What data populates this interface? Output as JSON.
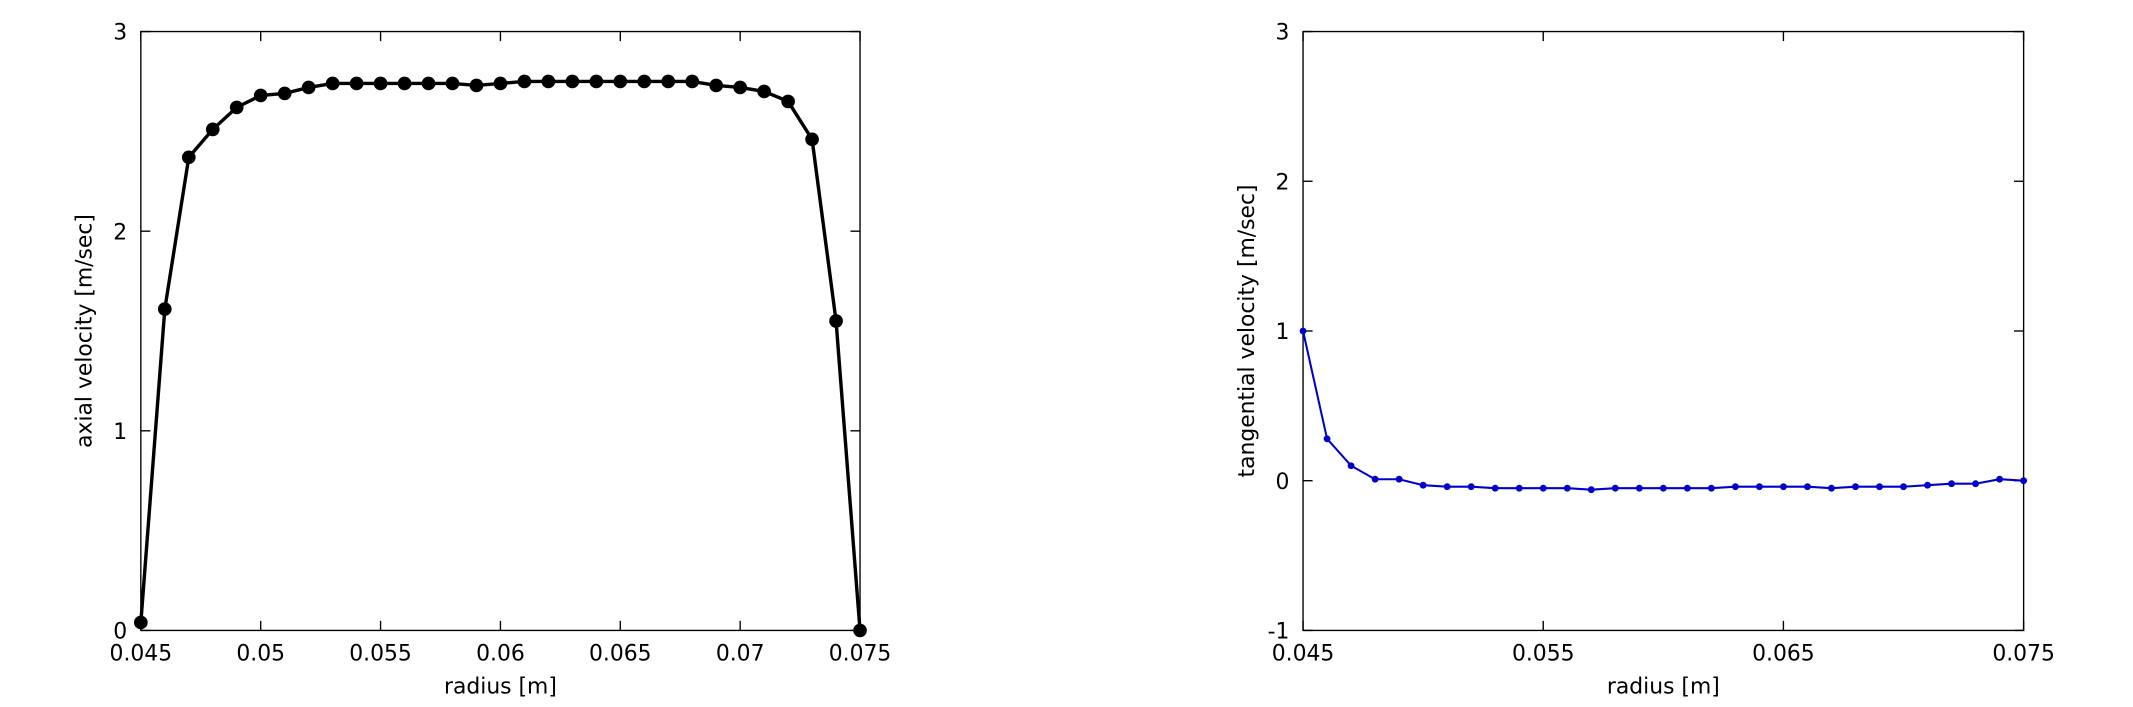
{
  "chart_data": [
    {
      "type": "line",
      "xlabel": "radius [m]",
      "ylabel": "axial velocity [m/sec]",
      "x": [
        0.045,
        0.046,
        0.047,
        0.048,
        0.049,
        0.05,
        0.051,
        0.052,
        0.053,
        0.054,
        0.055,
        0.056,
        0.057,
        0.058,
        0.059,
        0.06,
        0.061,
        0.062,
        0.063,
        0.064,
        0.065,
        0.066,
        0.067,
        0.068,
        0.069,
        0.07,
        0.071,
        0.072,
        0.073,
        0.074,
        0.075
      ],
      "series": [
        {
          "color": "#000000",
          "values": [
            0.04,
            1.61,
            2.37,
            2.51,
            2.62,
            2.68,
            2.69,
            2.72,
            2.74,
            2.74,
            2.74,
            2.74,
            2.74,
            2.74,
            2.73,
            2.74,
            2.75,
            2.75,
            2.75,
            2.75,
            2.75,
            2.75,
            2.75,
            2.75,
            2.73,
            2.72,
            2.7,
            2.65,
            2.46,
            1.55,
            0
          ]
        }
      ],
      "xlim": [
        0.045,
        0.075
      ],
      "xticks": [
        0.045,
        0.05,
        0.055,
        0.06,
        0.065,
        0.07,
        0.075
      ],
      "ylim": [
        0,
        3
      ],
      "yticks": [
        0,
        1,
        2,
        3
      ]
    },
    {
      "type": "line",
      "xlabel": "radius [m]",
      "ylabel": "tangential velocity [m/sec]",
      "x": [
        0.045,
        0.046,
        0.047,
        0.048,
        0.049,
        0.05,
        0.051,
        0.052,
        0.053,
        0.054,
        0.055,
        0.056,
        0.057,
        0.058,
        0.059,
        0.06,
        0.061,
        0.062,
        0.063,
        0.064,
        0.065,
        0.066,
        0.067,
        0.068,
        0.069,
        0.07,
        0.071,
        0.072,
        0.073,
        0.074,
        0.075
      ],
      "series": [
        {
          "color": "#0000cc",
          "values": [
            1.0,
            0.28,
            0.1,
            0.01,
            0.01,
            -0.03,
            -0.04,
            -0.04,
            -0.05,
            -0.05,
            -0.05,
            -0.05,
            -0.06,
            -0.05,
            -0.05,
            -0.05,
            -0.05,
            -0.05,
            -0.04,
            -0.04,
            -0.04,
            -0.04,
            -0.05,
            -0.04,
            -0.04,
            -0.04,
            -0.03,
            -0.02,
            -0.02,
            0.01,
            0
          ]
        }
      ],
      "xlim": [
        0.045,
        0.075
      ],
      "xticks": [
        0.045,
        0.055,
        0.065,
        0.075
      ],
      "ylim": [
        -1,
        3
      ],
      "yticks": [
        -1,
        0,
        1,
        2,
        3
      ]
    }
  ]
}
